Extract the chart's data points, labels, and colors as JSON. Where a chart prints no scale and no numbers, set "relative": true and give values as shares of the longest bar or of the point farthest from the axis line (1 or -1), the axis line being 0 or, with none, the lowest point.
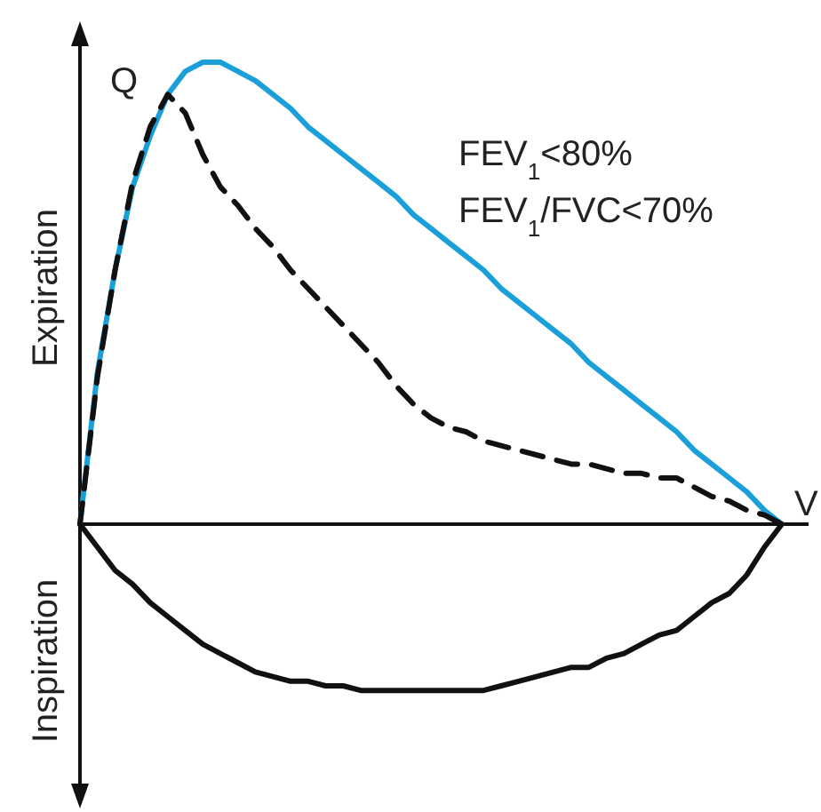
{
  "chart_data": {
    "type": "line",
    "relative": true,
    "ylabel": "Q",
    "xlabel": "V",
    "categories": [
      null,
      null,
      null,
      null,
      null,
      null,
      null,
      null,
      null,
      null,
      null,
      null,
      null,
      null,
      null,
      null,
      null,
      null,
      null,
      null,
      null,
      null,
      null,
      null,
      null,
      null,
      null,
      null,
      null,
      null,
      null,
      null,
      null,
      null,
      null,
      null,
      null,
      null,
      null,
      null,
      null
    ],
    "series": [
      {
        "color": "#1a9fd9",
        "line_style": "solid",
        "values": [
          0,
          0.33,
          0.55,
          0.73,
          0.84,
          0.93,
          0.98,
          1,
          1,
          0.98,
          0.96,
          0.93,
          0.9,
          0.86,
          0.83,
          0.8,
          0.77,
          0.74,
          0.71,
          0.67,
          0.64,
          0.61,
          0.58,
          0.55,
          0.51,
          0.48,
          0.45,
          0.42,
          0.39,
          0.35,
          0.32,
          0.29,
          0.26,
          0.23,
          0.2,
          0.16,
          0.13,
          0.1,
          0.07,
          0.03,
          0
        ]
      },
      {
        "color": "#111111",
        "line_style": "dashed",
        "values": [
          0,
          0.32,
          0.55,
          0.74,
          0.86,
          0.93,
          0.89,
          0.8,
          0.73,
          0.69,
          0.64,
          0.6,
          0.55,
          0.51,
          0.47,
          0.43,
          0.39,
          0.35,
          0.3,
          0.26,
          0.23,
          0.21,
          0.2,
          0.18,
          0.17,
          0.16,
          0.15,
          0.14,
          0.13,
          0.13,
          0.12,
          0.11,
          0.11,
          0.1,
          0.1,
          0.08,
          0.06,
          0.05,
          0.03,
          0.02,
          0
        ]
      },
      {
        "color": "#111111",
        "line_style": "solid",
        "values": [
          0,
          -0.05,
          -0.1,
          -0.13,
          -0.17,
          -0.2,
          -0.23,
          -0.26,
          -0.28,
          -0.3,
          -0.32,
          -0.33,
          -0.34,
          -0.34,
          -0.35,
          -0.35,
          -0.36,
          -0.36,
          -0.36,
          -0.36,
          -0.36,
          -0.36,
          -0.36,
          -0.36,
          -0.35,
          -0.34,
          -0.33,
          -0.32,
          -0.31,
          -0.31,
          -0.29,
          -0.28,
          -0.26,
          -0.24,
          -0.23,
          -0.2,
          -0.17,
          -0.15,
          -0.11,
          -0.05,
          0
        ]
      }
    ],
    "annotations": [
      "Expiration",
      "Inspiration",
      "FEV$_{1}$<80%",
      "FEV$_{1}$/FVC<70%"
    ]
  }
}
